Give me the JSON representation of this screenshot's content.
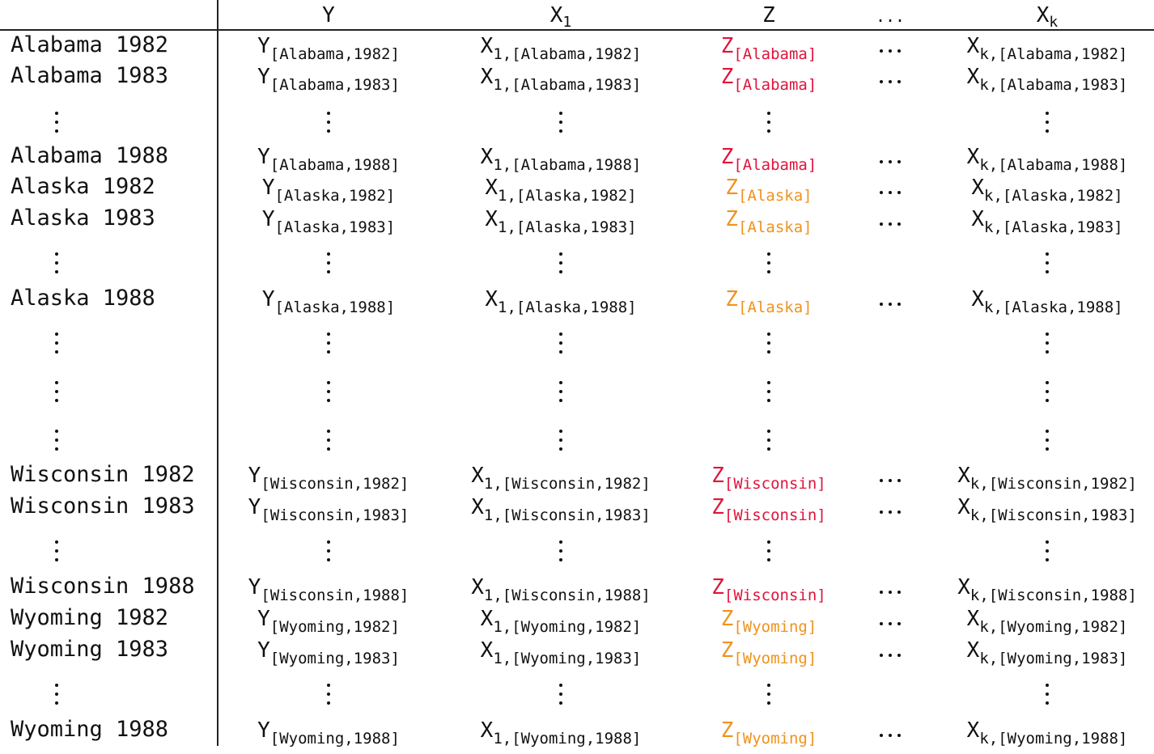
{
  "columns": [
    {
      "base": "Y",
      "sub": ""
    },
    {
      "base": "X",
      "sub": "1"
    },
    {
      "base": "Z",
      "sub": ""
    },
    {
      "base": "...",
      "sub": ""
    },
    {
      "base": "X",
      "sub": "k"
    }
  ],
  "colors": {
    "red": "#e0143c",
    "orange": "#f0921e",
    "text": "#111111"
  },
  "rows": [
    {
      "kind": "data",
      "label": "Alabama 1982",
      "y": "[Alabama,1982]",
      "x1": "1,[Alabama,1982]",
      "z": "[Alabama]",
      "zc": "red",
      "xk": "k,[Alabama,1982]"
    },
    {
      "kind": "data",
      "label": "Alabama 1983",
      "y": "[Alabama,1983]",
      "x1": "1,[Alabama,1983]",
      "z": "[Alabama]",
      "zc": "red",
      "xk": "k,[Alabama,1983]"
    },
    {
      "kind": "dots"
    },
    {
      "kind": "data",
      "label": "Alabama 1988",
      "y": "[Alabama,1988]",
      "x1": "1,[Alabama,1988]",
      "z": "[Alabama]",
      "zc": "red",
      "xk": "k,[Alabama,1988]"
    },
    {
      "kind": "data",
      "label": "Alaska 1982",
      "y": "[Alaska,1982]",
      "x1": "1,[Alaska,1982]",
      "z": "[Alaska]",
      "zc": "orange",
      "xk": "k,[Alaska,1982]"
    },
    {
      "kind": "data",
      "label": "Alaska 1983",
      "y": "[Alaska,1983]",
      "x1": "1,[Alaska,1983]",
      "z": "[Alaska]",
      "zc": "orange",
      "xk": "k,[Alaska,1983]"
    },
    {
      "kind": "dots"
    },
    {
      "kind": "data",
      "label": "Alaska 1988",
      "y": "[Alaska,1988]",
      "x1": "1,[Alaska,1988]",
      "z": "[Alaska]",
      "zc": "orange",
      "xk": "k,[Alaska,1988]"
    },
    {
      "kind": "dots"
    },
    {
      "kind": "dots"
    },
    {
      "kind": "dots"
    },
    {
      "kind": "data",
      "label": "Wisconsin 1982",
      "y": "[Wisconsin,1982]",
      "x1": "1,[Wisconsin,1982]",
      "z": "[Wisconsin]",
      "zc": "red",
      "xk": "k,[Wisconsin,1982]"
    },
    {
      "kind": "data",
      "label": "Wisconsin 1983",
      "y": "[Wisconsin,1983]",
      "x1": "1,[Wisconsin,1983]",
      "z": "[Wisconsin]",
      "zc": "red",
      "xk": "k,[Wisconsin,1983]"
    },
    {
      "kind": "dots"
    },
    {
      "kind": "data",
      "label": "Wisconsin 1988",
      "y": "[Wisconsin,1988]",
      "x1": "1,[Wisconsin,1988]",
      "z": "[Wisconsin]",
      "zc": "red",
      "xk": "k,[Wisconsin,1988]"
    },
    {
      "kind": "data",
      "label": "Wyoming 1982",
      "y": "[Wyoming,1982]",
      "x1": "1,[Wyoming,1982]",
      "z": "[Wyoming]",
      "zc": "orange",
      "xk": "k,[Wyoming,1982]"
    },
    {
      "kind": "data",
      "label": "Wyoming 1983",
      "y": "[Wyoming,1983]",
      "x1": "1,[Wyoming,1983]",
      "z": "[Wyoming]",
      "zc": "orange",
      "xk": "k,[Wyoming,1983]"
    },
    {
      "kind": "dots"
    },
    {
      "kind": "data",
      "label": "Wyoming 1988",
      "y": "[Wyoming,1988]",
      "x1": "1,[Wyoming,1988]",
      "z": "[Wyoming]",
      "zc": "orange",
      "xk": "k,[Wyoming,1988]"
    }
  ]
}
